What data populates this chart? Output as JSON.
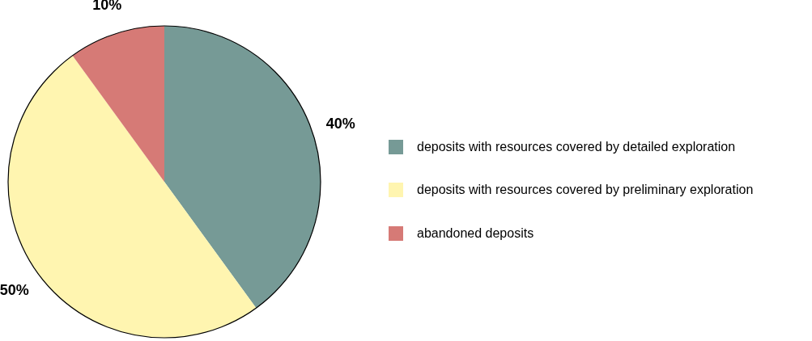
{
  "chart_data": {
    "type": "pie",
    "categories": [
      "deposits with resources covered by detailed exploration",
      "deposits with resources covered by preliminary exploration",
      "abandoned deposits"
    ],
    "values": [
      40,
      50,
      10
    ],
    "colors": [
      "#769a96",
      "#fff5b0",
      "#d67a76"
    ],
    "value_labels": [
      "40%",
      "50%",
      "10%"
    ],
    "legend": "right"
  }
}
